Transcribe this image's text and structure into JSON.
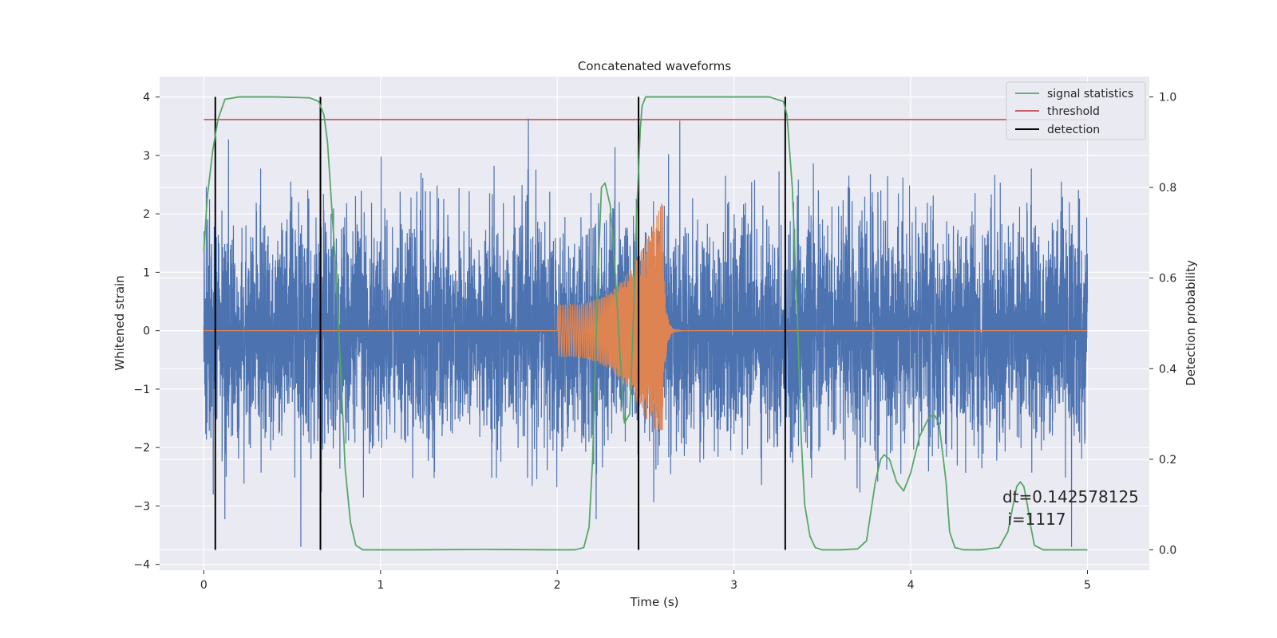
{
  "chart_data": {
    "type": "line",
    "title": "Concatenated waveforms",
    "xlabel": "Time (s)",
    "ylabel": "Whitened strain",
    "y2label": "Detection probability",
    "xlim": [
      -0.25,
      5.35
    ],
    "ylim": [
      -4.1,
      4.35
    ],
    "y2lim": [
      -0.045,
      1.045
    ],
    "xticks": [
      0,
      1,
      2,
      3,
      4,
      5
    ],
    "yticks": [
      -4,
      -3,
      -2,
      -1,
      0,
      1,
      2,
      3,
      4
    ],
    "y2ticks": [
      0.0,
      0.2,
      0.4,
      0.6,
      0.8,
      1.0
    ],
    "grid": true,
    "legend_position": "top-right",
    "legend": [
      "signal statistics",
      "threshold",
      "detection"
    ],
    "colors": {
      "strain": "#4c72b0",
      "injection": "#dd8452",
      "signal_statistics": "#55a868",
      "threshold": "#c44e52",
      "detection": "#000000",
      "plot_bg": "#eaeaf2",
      "grid": "#ffffff"
    },
    "strain_range": {
      "x_start": 0,
      "x_end": 5,
      "typical_amplitude": 1.0,
      "peak_amplitude": 3.7
    },
    "injection": {
      "x_start": 2.0,
      "x_merger": 2.6,
      "x_ringdown_end": 2.75,
      "x_end": 5.0,
      "start_amplitude": 0.45,
      "peak_amplitude": 2.3,
      "peak_negative": -1.7
    },
    "series": [
      {
        "name": "signal statistics",
        "axis": "y2",
        "x": [
          0.0,
          0.02,
          0.05,
          0.08,
          0.12,
          0.2,
          0.4,
          0.6,
          0.65,
          0.68,
          0.7,
          0.72,
          0.75,
          0.78,
          0.8,
          0.83,
          0.86,
          0.9,
          1.2,
          1.6,
          2.0,
          2.1,
          2.15,
          2.18,
          2.2,
          2.23,
          2.25,
          2.27,
          2.3,
          2.33,
          2.36,
          2.38,
          2.41,
          2.43,
          2.45,
          2.47,
          2.48,
          2.5,
          2.55,
          2.8,
          3.2,
          3.28,
          3.3,
          3.33,
          3.36,
          3.38,
          3.4,
          3.43,
          3.46,
          3.5,
          3.6,
          3.7,
          3.75,
          3.8,
          3.83,
          3.85,
          3.88,
          3.92,
          3.96,
          4.0,
          4.05,
          4.1,
          4.13,
          4.16,
          4.2,
          4.22,
          4.25,
          4.3,
          4.4,
          4.5,
          4.55,
          4.58,
          4.6,
          4.62,
          4.64,
          4.66,
          4.68,
          4.7,
          4.75,
          4.8,
          5.0
        ],
        "values": [
          0.66,
          0.78,
          0.88,
          0.95,
          0.995,
          1.0,
          1.0,
          0.998,
          0.99,
          0.96,
          0.9,
          0.78,
          0.6,
          0.35,
          0.18,
          0.06,
          0.01,
          0.0,
          0.0,
          0.001,
          0.0,
          0.0,
          0.005,
          0.05,
          0.2,
          0.6,
          0.8,
          0.81,
          0.76,
          0.6,
          0.4,
          0.28,
          0.3,
          0.5,
          0.75,
          0.93,
          0.98,
          1.0,
          1.0,
          1.0,
          1.0,
          0.99,
          0.96,
          0.8,
          0.5,
          0.25,
          0.1,
          0.03,
          0.005,
          0.0,
          0.0,
          0.002,
          0.02,
          0.15,
          0.2,
          0.21,
          0.2,
          0.15,
          0.13,
          0.17,
          0.25,
          0.29,
          0.3,
          0.28,
          0.15,
          0.04,
          0.005,
          0.0,
          0.0,
          0.005,
          0.04,
          0.1,
          0.14,
          0.15,
          0.14,
          0.1,
          0.05,
          0.01,
          0.0,
          0.0,
          0.0
        ]
      },
      {
        "name": "threshold",
        "axis": "y2",
        "x": [
          0,
          5
        ],
        "values": [
          0.95,
          0.95
        ]
      },
      {
        "name": "detection",
        "axis": "y2",
        "type": "vlines",
        "x": [
          0.065,
          0.66,
          2.46,
          3.29
        ],
        "ymin": 0.0,
        "ymax": 1.0
      }
    ],
    "annotation": {
      "line1": "dt=0.142578125",
      "line2": " i=1117",
      "x": 4.5,
      "y": -2.9
    }
  }
}
